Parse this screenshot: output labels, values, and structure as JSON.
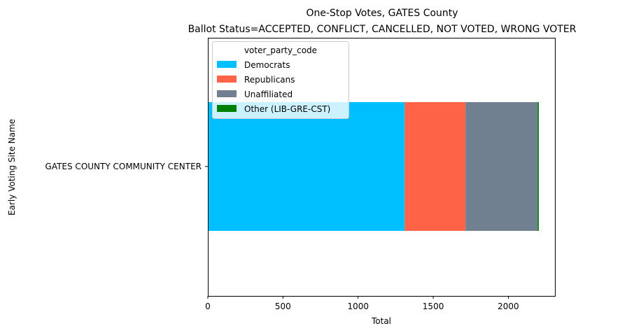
{
  "chart_data": {
    "type": "bar",
    "orientation": "horizontal",
    "stacked": true,
    "title": "One-Stop Votes, GATES County",
    "subtitle": "Ballot Status=ACCEPTED, CONFLICT, CANCELLED, NOT VOTED, WRONG VOTER",
    "xlabel": "Total",
    "ylabel": "Early Voting Site Name",
    "categories": [
      "GATES COUNTY COMMUNITY CENTER"
    ],
    "xlim": [
      0,
      2310
    ],
    "xticks": [
      0,
      500,
      1000,
      1500,
      2000
    ],
    "grid": false,
    "legend": {
      "title": "voter_party_code",
      "placement": "top-left"
    },
    "series": [
      {
        "name": "Democrats",
        "values": [
          1310
        ],
        "color": "#00bfff"
      },
      {
        "name": "Republicans",
        "values": [
          405
        ],
        "color": "#ff6347"
      },
      {
        "name": "Unaffiliated",
        "values": [
          480
        ],
        "color": "#708090"
      },
      {
        "name": "Other (LIB-GRE-CST)",
        "values": [
          8
        ],
        "color": "#008000"
      }
    ]
  }
}
